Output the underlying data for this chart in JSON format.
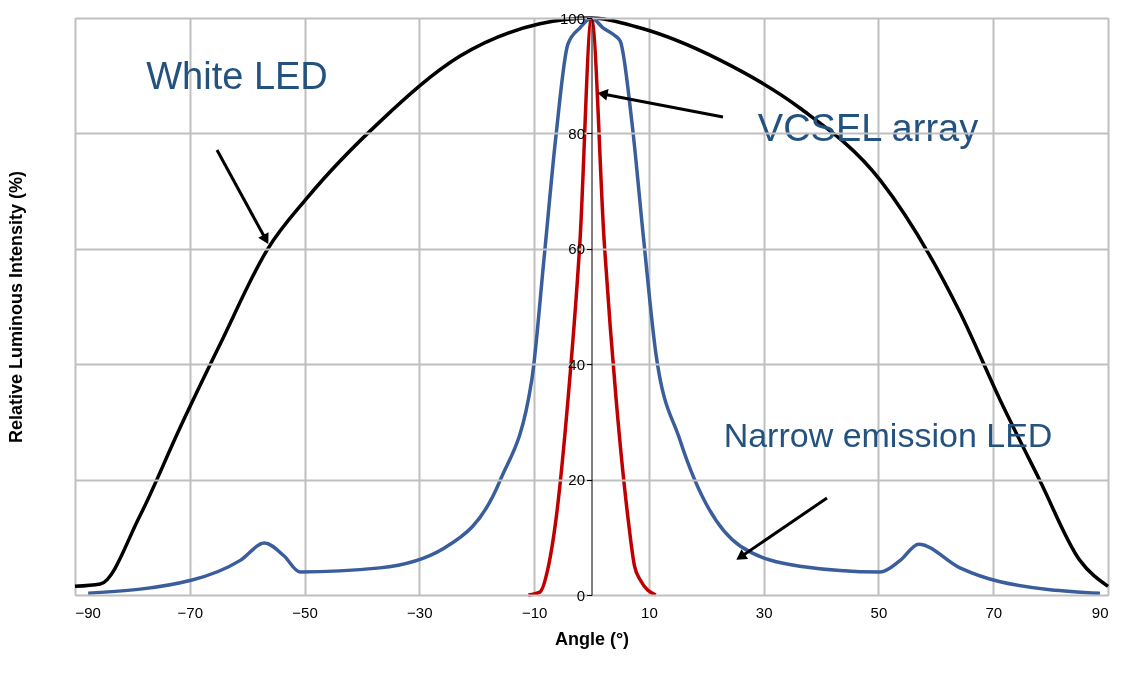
{
  "chart_data": {
    "type": "line",
    "xlabel": "Angle (°)",
    "ylabel": "Relative Luminous Intensity (%)",
    "xlim": [
      -90,
      90
    ],
    "xticks": [
      -90,
      -70,
      -50,
      -30,
      -10,
      10,
      30,
      50,
      70,
      90
    ],
    "ylim": [
      0,
      100
    ],
    "yticks": [
      0,
      20,
      40,
      60,
      80,
      100
    ],
    "grid": true,
    "marker": "none",
    "line_style": "solid",
    "series": [
      {
        "color": "#000000",
        "x": [
          -90,
          -85.6,
          -78.7,
          -71.7,
          -64.7,
          -56.4,
          -49.4,
          -36.9,
          -22.9,
          -9,
          0,
          8.4,
          22.4,
          36.3,
          50.3,
          64.2,
          71.2,
          78.1,
          85.1,
          90
        ],
        "values": [
          1.5,
          1.9,
          13.7,
          29,
          43.5,
          60,
          69,
          82,
          93.4,
          99,
          100,
          98.3,
          92.7,
          84.4,
          71.9,
          49,
          33.8,
          19.9,
          6,
          1.5
        ]
      },
      {
        "color": "#3a5d9c",
        "x": [
          -87.7,
          -69.6,
          -61.2,
          -57,
          -53.6,
          -50.8,
          -36.9,
          -25.7,
          -15.9,
          -10.4,
          -8.3,
          -6.2,
          -4.1,
          -2,
          0,
          2,
          4,
          5,
          7,
          9.1,
          11.2,
          15.4,
          25.9,
          36.3,
          50.3,
          53.8,
          57,
          64.2,
          71.2,
          88.6
        ],
        "values": [
          0.3,
          2.6,
          6,
          9,
          6.8,
          4,
          4.7,
          8.1,
          19.9,
          37.3,
          58,
          79.5,
          95.5,
          98.3,
          100,
          98.3,
          97,
          96,
          82.3,
          61.5,
          42,
          26.9,
          8.5,
          5,
          4,
          6,
          8.8,
          4.7,
          2.3,
          0.3
        ]
      },
      {
        "color": "#c00000",
        "x": [
          -11,
          -9,
          -7.5,
          -6.2,
          -4.1,
          -2,
          0,
          2.2,
          4.3,
          6.4,
          7.5,
          8.5,
          11.2
        ],
        "values": [
          0,
          0.5,
          5,
          13,
          33.8,
          61.5,
          100,
          61.5,
          33.8,
          13,
          5,
          2.6,
          0
        ]
      }
    ],
    "annotations": [
      "White LED",
      {
        "text": "VCSEL array",
        "x": 2.2,
        "y": 86.8
      },
      "Narrow emission LED"
    ]
  }
}
